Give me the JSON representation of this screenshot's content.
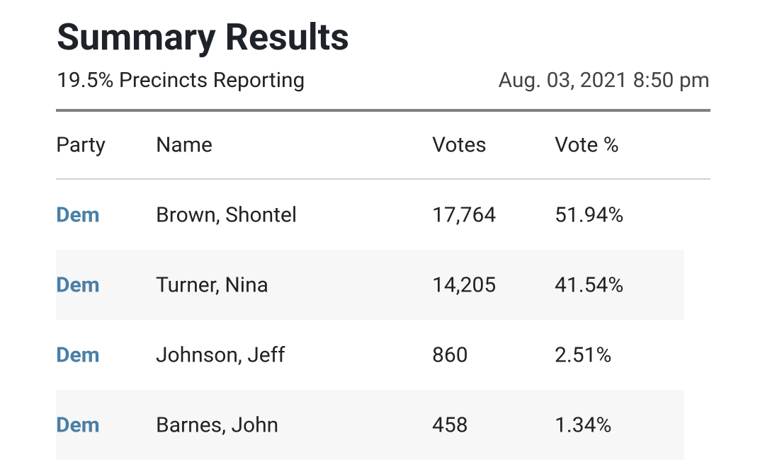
{
  "header": {
    "title": "Summary Results",
    "reporting": "19.5% Precincts Reporting",
    "timestamp": "Aug. 03, 2021 8:50 pm"
  },
  "table": {
    "columns": [
      "Party",
      "Name",
      "Votes",
      "Vote %"
    ],
    "rows": [
      [
        "Dem",
        "Brown, Shontel",
        "17,764",
        "51.94%"
      ],
      [
        "Dem",
        "Turner, Nina",
        "14,205",
        "41.54%"
      ],
      [
        "Dem",
        "Johnson, Jeff",
        "860",
        "2.51%"
      ],
      [
        "Dem",
        "Barnes, John",
        "458",
        "1.34%"
      ]
    ]
  }
}
